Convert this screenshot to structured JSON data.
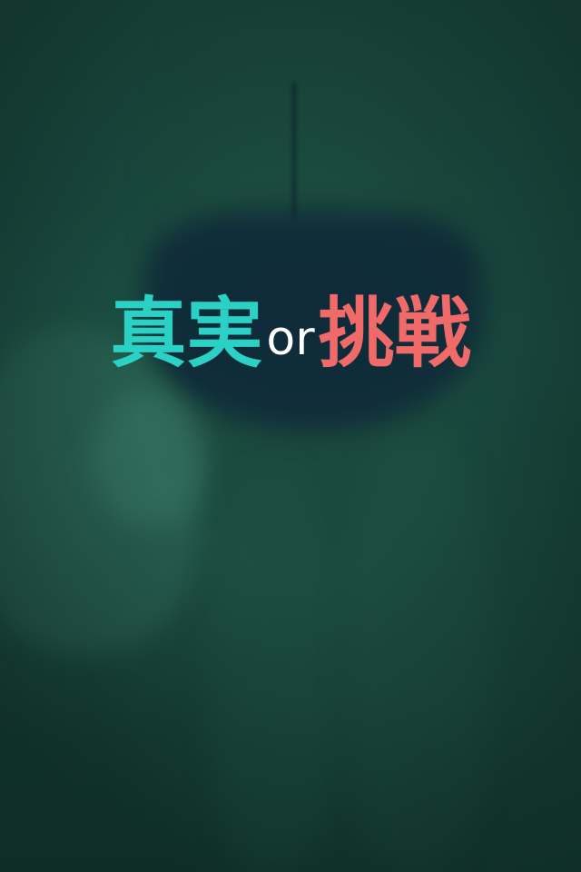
{
  "title": {
    "truth": "真実",
    "or": "or",
    "dare": "挑戦",
    "truth_color": "#2ad1c4",
    "or_color": "#ffffff",
    "dare_color": "#f06a6a"
  },
  "background": {
    "overlay_color": "#163d35"
  }
}
